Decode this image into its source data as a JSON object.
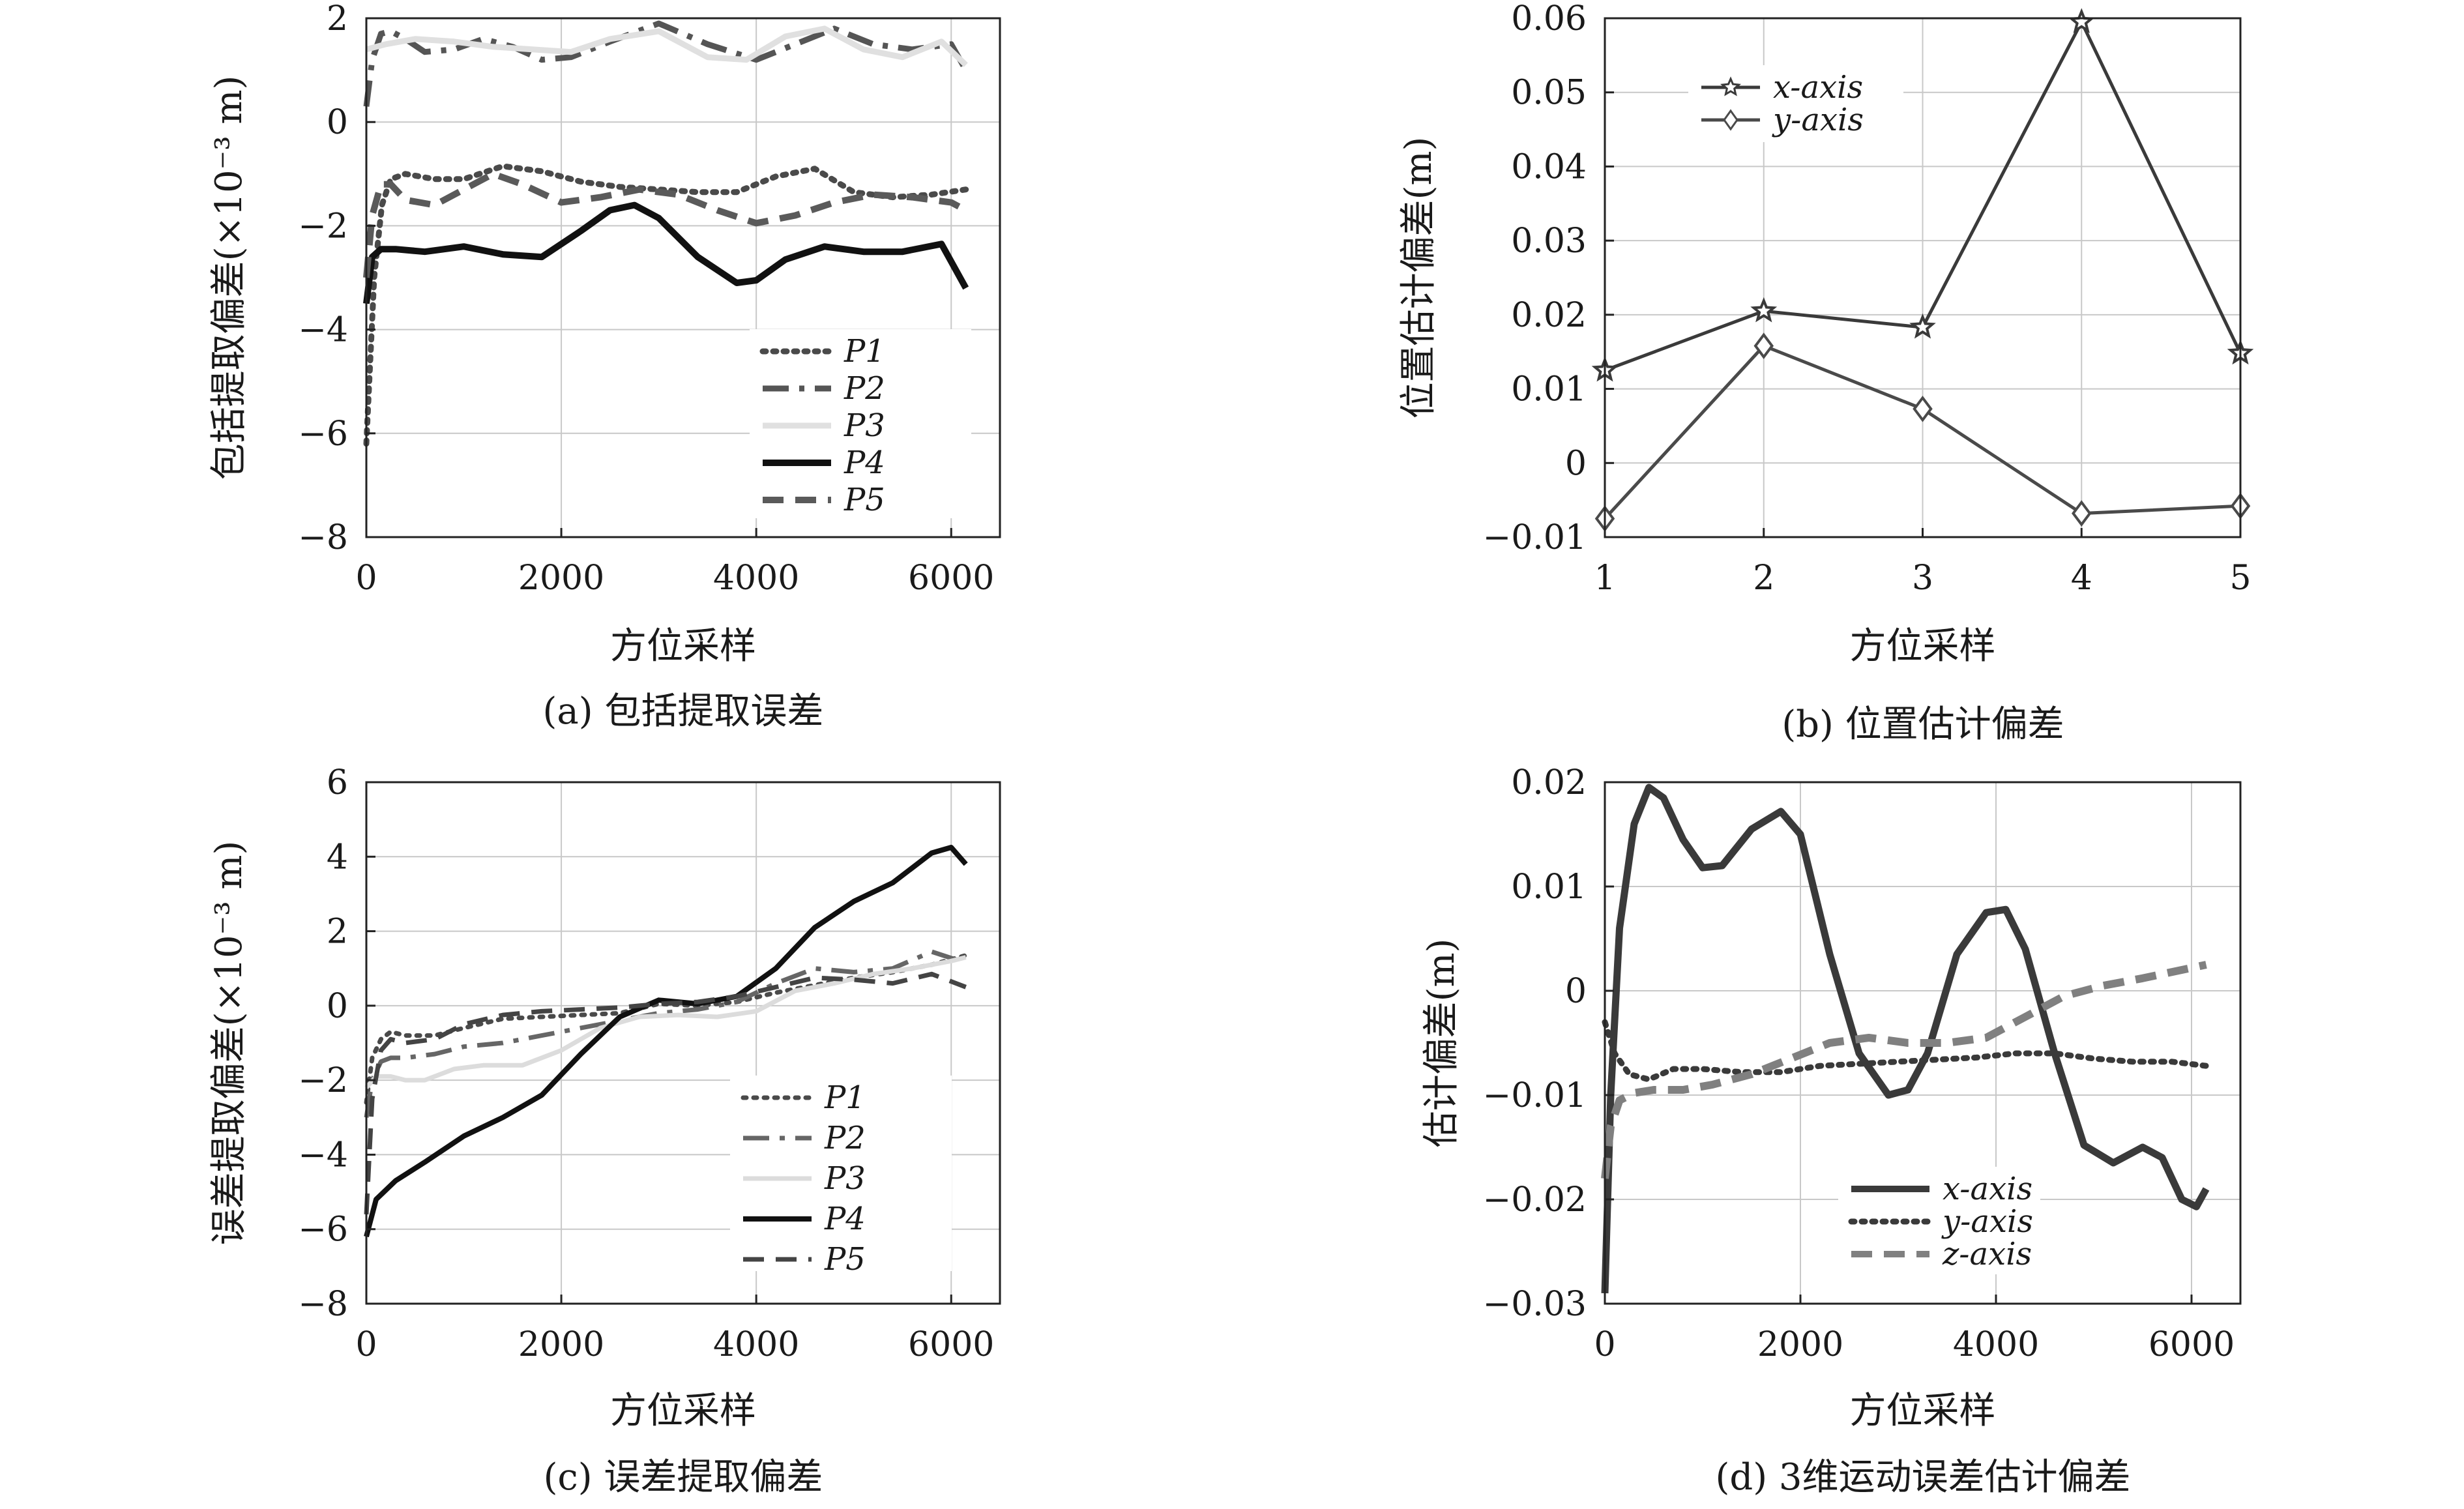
{
  "chart_data": [
    {
      "id": "a",
      "type": "line",
      "caption": "(a) 包括提取误差",
      "xlabel": "方位采样",
      "ylabel": "包括提取偏差(×10⁻³ m)",
      "xlim": [
        0,
        6500
      ],
      "ylim": [
        -8,
        2
      ],
      "xticks": [
        0,
        2000,
        4000,
        6000
      ],
      "yticks": [
        -8,
        -6,
        -4,
        -2,
        0,
        2
      ],
      "xtick_labels": [
        "0",
        "2000",
        "4000",
        "6000"
      ],
      "ytick_labels": [
        "−8",
        "−6",
        "−4",
        "−2",
        "0",
        "2"
      ],
      "grid": true,
      "legend_position": "lower-right",
      "series": [
        {
          "name": "P1",
          "style": "dotted",
          "color": "#4a4a4a",
          "width": 9,
          "x": [
            0,
            80,
            160,
            250,
            400,
            700,
            1000,
            1400,
            1800,
            2200,
            2600,
            3000,
            3400,
            3800,
            4200,
            4600,
            5000,
            5400,
            5800,
            6150
          ],
          "y": [
            -6.2,
            -3.0,
            -1.6,
            -1.1,
            -1.0,
            -1.1,
            -1.1,
            -0.85,
            -0.95,
            -1.15,
            -1.25,
            -1.3,
            -1.35,
            -1.35,
            -1.05,
            -0.9,
            -1.35,
            -1.45,
            -1.4,
            -1.3
          ]
        },
        {
          "name": "P2",
          "style": "dashdot",
          "color": "#555555",
          "width": 9,
          "x": [
            0,
            60,
            150,
            250,
            400,
            600,
            900,
            1200,
            1500,
            1800,
            2100,
            2500,
            3000,
            3500,
            4000,
            4400,
            4800,
            5200,
            5600,
            6000,
            6150
          ],
          "y": [
            0.3,
            1.2,
            1.7,
            1.75,
            1.6,
            1.35,
            1.4,
            1.6,
            1.45,
            1.2,
            1.25,
            1.55,
            1.9,
            1.5,
            1.2,
            1.5,
            1.8,
            1.5,
            1.4,
            1.5,
            1.0
          ]
        },
        {
          "name": "P3",
          "style": "solid",
          "color": "#e0e0e0",
          "width": 9,
          "x": [
            0,
            200,
            500,
            900,
            1300,
            1700,
            2100,
            2500,
            3000,
            3500,
            3900,
            4300,
            4700,
            5100,
            5500,
            5900,
            6150
          ],
          "y": [
            1.4,
            1.5,
            1.6,
            1.55,
            1.45,
            1.4,
            1.35,
            1.6,
            1.75,
            1.25,
            1.2,
            1.65,
            1.8,
            1.4,
            1.25,
            1.55,
            1.1
          ]
        },
        {
          "name": "P4",
          "style": "solid",
          "color": "#111111",
          "width": 10,
          "x": [
            0,
            60,
            150,
            300,
            600,
            1000,
            1400,
            1800,
            2200,
            2500,
            2750,
            3000,
            3400,
            3800,
            4000,
            4300,
            4700,
            5100,
            5500,
            5900,
            6150
          ],
          "y": [
            -3.5,
            -2.6,
            -2.45,
            -2.45,
            -2.5,
            -2.4,
            -2.55,
            -2.6,
            -2.1,
            -1.7,
            -1.6,
            -1.85,
            -2.6,
            -3.1,
            -3.05,
            -2.65,
            -2.4,
            -2.5,
            -2.5,
            -2.35,
            -3.2
          ]
        },
        {
          "name": "P5",
          "style": "dashed",
          "color": "#5a5a5a",
          "width": 10,
          "x": [
            0,
            60,
            150,
            250,
            400,
            700,
            1000,
            1300,
            1600,
            2000,
            2400,
            2800,
            3200,
            3600,
            4000,
            4400,
            4800,
            5200,
            5600,
            6000,
            6150
          ],
          "y": [
            -3.0,
            -1.8,
            -1.2,
            -1.2,
            -1.5,
            -1.6,
            -1.3,
            -1.0,
            -1.2,
            -1.55,
            -1.45,
            -1.3,
            -1.4,
            -1.7,
            -1.95,
            -1.8,
            -1.55,
            -1.4,
            -1.45,
            -1.55,
            -1.7
          ]
        }
      ],
      "legend_order": [
        0,
        1,
        2,
        3,
        4
      ]
    },
    {
      "id": "b",
      "type": "line",
      "caption": "(b) 位置估计偏差",
      "xlabel": "方位采样",
      "ylabel": "位置估计偏差(m)",
      "xlim": [
        1,
        5
      ],
      "ylim": [
        -0.01,
        0.06
      ],
      "xticks": [
        1,
        2,
        3,
        4,
        5
      ],
      "yticks": [
        -0.01,
        0,
        0.01,
        0.02,
        0.03,
        0.04,
        0.05,
        0.06
      ],
      "xtick_labels": [
        "1",
        "2",
        "3",
        "4",
        "5"
      ],
      "ytick_labels": [
        "−0.01",
        "0",
        "0.01",
        "0.02",
        "0.03",
        "0.04",
        "0.05",
        "0.06"
      ],
      "grid": true,
      "legend_position": "top-left",
      "series": [
        {
          "name": "x-axis",
          "style": "solid",
          "marker": "star",
          "color": "#3a3a3a",
          "width": 5,
          "x": [
            1,
            2,
            3,
            4,
            5
          ],
          "y": [
            0.0125,
            0.0205,
            0.0183,
            0.0595,
            0.0148
          ]
        },
        {
          "name": "y-axis",
          "style": "solid",
          "marker": "diamond",
          "color": "#4a4a4a",
          "width": 5,
          "x": [
            1,
            2,
            3,
            4,
            5
          ],
          "y": [
            -0.0075,
            0.0158,
            0.0073,
            -0.0068,
            -0.0058
          ]
        }
      ],
      "legend_order": [
        0,
        1
      ]
    },
    {
      "id": "c",
      "type": "line",
      "caption": "(c) 误差提取偏差",
      "xlabel": "方位采样",
      "ylabel": "误差提取偏差(×10⁻³ m)",
      "xlim": [
        0,
        6500
      ],
      "ylim": [
        -8,
        6
      ],
      "xticks": [
        0,
        2000,
        4000,
        6000
      ],
      "yticks": [
        -8,
        -6,
        -4,
        -2,
        0,
        2,
        4,
        6
      ],
      "xtick_labels": [
        "0",
        "2000",
        "4000",
        "6000"
      ],
      "ytick_labels": [
        "−8",
        "−6",
        "−4",
        "−2",
        "0",
        "2",
        "4",
        "6"
      ],
      "grid": true,
      "legend_position": "lower-right",
      "series": [
        {
          "name": "P1",
          "style": "dotted",
          "color": "#4a4a4a",
          "width": 7,
          "x": [
            0,
            60,
            150,
            250,
            400,
            700,
            1000,
            1400,
            1800,
            2200,
            2600,
            3000,
            3400,
            3800,
            4200,
            4600,
            5000,
            5400,
            5800,
            6150
          ],
          "y": [
            -2.6,
            -1.4,
            -0.9,
            -0.7,
            -0.8,
            -0.8,
            -0.6,
            -0.35,
            -0.3,
            -0.25,
            -0.2,
            0.05,
            0.0,
            0.1,
            0.35,
            0.55,
            0.75,
            0.9,
            1.1,
            1.35
          ]
        },
        {
          "name": "P2",
          "style": "dashdot",
          "color": "#666666",
          "width": 7,
          "x": [
            0,
            60,
            150,
            250,
            400,
            700,
            1000,
            1400,
            1800,
            2200,
            2600,
            3000,
            3400,
            3800,
            4200,
            4600,
            5000,
            5400,
            5800,
            6150
          ],
          "y": [
            -3.0,
            -2.0,
            -1.5,
            -1.4,
            -1.4,
            -1.3,
            -1.1,
            -1.0,
            -0.8,
            -0.6,
            -0.4,
            -0.2,
            -0.1,
            0.1,
            0.6,
            1.0,
            0.9,
            1.0,
            1.45,
            1.15
          ]
        },
        {
          "name": "P3",
          "style": "solid",
          "color": "#dcdcdc",
          "width": 7,
          "x": [
            0,
            100,
            250,
            400,
            600,
            900,
            1200,
            1600,
            2000,
            2400,
            2800,
            3200,
            3600,
            4000,
            4400,
            4800,
            5200,
            5600,
            6000,
            6150
          ],
          "y": [
            -2.2,
            -1.9,
            -1.9,
            -2.0,
            -2.0,
            -1.7,
            -1.6,
            -1.6,
            -1.2,
            -0.6,
            -0.3,
            -0.25,
            -0.3,
            -0.15,
            0.4,
            0.6,
            0.85,
            1.0,
            1.2,
            1.3
          ]
        },
        {
          "name": "P4",
          "style": "solid",
          "color": "#111111",
          "width": 8,
          "x": [
            0,
            100,
            300,
            600,
            1000,
            1400,
            1800,
            2200,
            2600,
            3000,
            3400,
            3800,
            4200,
            4600,
            5000,
            5400,
            5800,
            6000,
            6150
          ],
          "y": [
            -6.2,
            -5.2,
            -4.7,
            -4.2,
            -3.5,
            -3.0,
            -2.4,
            -1.3,
            -0.3,
            0.15,
            0.05,
            0.25,
            1.0,
            2.1,
            2.8,
            3.3,
            4.1,
            4.25,
            3.8
          ]
        },
        {
          "name": "P5",
          "style": "dashed",
          "color": "#444444",
          "width": 7,
          "x": [
            0,
            60,
            150,
            250,
            400,
            700,
            1000,
            1400,
            1800,
            2200,
            2600,
            3000,
            3400,
            3800,
            4200,
            4600,
            5000,
            5400,
            5800,
            6150
          ],
          "y": [
            -5.6,
            -2.5,
            -1.2,
            -0.9,
            -1.0,
            -0.9,
            -0.5,
            -0.25,
            -0.15,
            -0.1,
            -0.05,
            0.05,
            0.1,
            0.25,
            0.5,
            0.75,
            0.7,
            0.6,
            0.85,
            0.5
          ]
        }
      ],
      "legend_order": [
        0,
        1,
        2,
        3,
        4
      ]
    },
    {
      "id": "d",
      "type": "line",
      "caption": "(d) 3维运动误差估计偏差",
      "xlabel": "方位采样",
      "ylabel": "估计偏差(m)",
      "xlim": [
        0,
        6500
      ],
      "ylim": [
        -0.03,
        0.02
      ],
      "xticks": [
        0,
        2000,
        4000,
        6000
      ],
      "yticks": [
        -0.03,
        -0.02,
        -0.01,
        0,
        0.01,
        0.02
      ],
      "xtick_labels": [
        "0",
        "2000",
        "4000",
        "6000"
      ],
      "ytick_labels": [
        "−0.03",
        "−0.02",
        "−0.01",
        "0",
        "0.01",
        "0.02"
      ],
      "grid": true,
      "legend_position": "lower-right",
      "series": [
        {
          "name": "x-axis",
          "style": "solid",
          "color": "#3a3a3a",
          "width": 11,
          "x": [
            0,
            60,
            150,
            300,
            450,
            600,
            800,
            1000,
            1200,
            1500,
            1800,
            2000,
            2300,
            2600,
            2900,
            3100,
            3300,
            3600,
            3900,
            4100,
            4300,
            4600,
            4900,
            5200,
            5500,
            5700,
            5900,
            6050,
            6150
          ],
          "y": [
            -0.029,
            -0.01,
            0.006,
            0.016,
            0.0195,
            0.0185,
            0.0145,
            0.0118,
            0.012,
            0.0155,
            0.0172,
            0.015,
            0.0035,
            -0.006,
            -0.01,
            -0.0095,
            -0.006,
            0.0035,
            0.0075,
            0.0078,
            0.004,
            -0.006,
            -0.0148,
            -0.0165,
            -0.015,
            -0.016,
            -0.02,
            -0.0207,
            -0.019
          ]
        },
        {
          "name": "y-axis",
          "style": "dotted",
          "color": "#3a3a3a",
          "width": 9,
          "x": [
            0,
            100,
            250,
            450,
            700,
            1000,
            1400,
            1800,
            2200,
            2600,
            3000,
            3400,
            3800,
            4200,
            4600,
            5000,
            5400,
            5800,
            6150
          ],
          "y": [
            -0.003,
            -0.006,
            -0.008,
            -0.0085,
            -0.0075,
            -0.0075,
            -0.0078,
            -0.0078,
            -0.0072,
            -0.007,
            -0.0068,
            -0.0066,
            -0.0064,
            -0.006,
            -0.006,
            -0.0065,
            -0.0068,
            -0.0068,
            -0.0072
          ]
        },
        {
          "name": "z-axis",
          "style": "dashed",
          "color": "#808080",
          "width": 12,
          "x": [
            0,
            60,
            150,
            300,
            500,
            800,
            1100,
            1500,
            1900,
            2300,
            2700,
            3100,
            3500,
            3900,
            4300,
            4700,
            5100,
            5500,
            5900,
            6150
          ],
          "y": [
            -0.018,
            -0.013,
            -0.0105,
            -0.0098,
            -0.0095,
            -0.0095,
            -0.009,
            -0.008,
            -0.0065,
            -0.005,
            -0.0045,
            -0.005,
            -0.005,
            -0.0045,
            -0.0025,
            -0.0005,
            0.0005,
            0.0012,
            0.002,
            0.0025
          ]
        }
      ],
      "legend_order": [
        0,
        1,
        2
      ]
    }
  ]
}
